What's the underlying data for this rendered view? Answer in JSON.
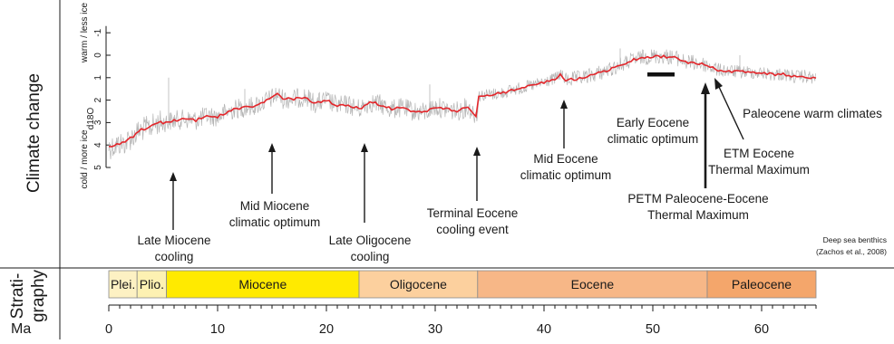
{
  "side_labels": {
    "climate": "Climate change",
    "strat_line1": "Strati-",
    "strat_line2": "graphy",
    "ma": "Ma"
  },
  "source_note": {
    "line1": "Deep sea benthics",
    "line2": "(Zachos et al., 2008)"
  },
  "colors": {
    "raw_series": "#b5b5b5",
    "smooth_series": "#e3262b",
    "axis": "#1a1a1a"
  },
  "chart_data": {
    "type": "line",
    "xlabel": "Ma",
    "ylabel": "d18O",
    "ylabel_top": "warm / less ice",
    "ylabel_bottom": "cold / more ice",
    "x_ticks": [
      0,
      10,
      20,
      30,
      40,
      50,
      60
    ],
    "y_ticks": [
      -1,
      0,
      1,
      2,
      3,
      4,
      5
    ],
    "xlim": [
      0,
      65
    ],
    "ylim": [
      5,
      -1.5
    ],
    "y_inverted": true,
    "series": [
      {
        "style": "smoothed",
        "x": [
          0,
          0.5,
          1,
          1.5,
          2,
          2.5,
          3,
          3.5,
          4,
          4.5,
          5,
          5.5,
          6,
          7,
          8,
          9,
          10,
          11,
          12,
          13,
          14,
          15,
          15.5,
          16,
          17,
          18,
          19,
          20,
          21,
          22,
          23,
          24,
          25,
          26,
          27,
          28,
          29,
          30,
          31,
          32,
          33,
          33.5,
          33.8,
          34,
          35,
          36,
          37,
          38,
          39,
          40,
          41,
          41.5,
          42,
          43,
          44,
          45,
          46,
          47,
          48,
          49,
          50,
          51,
          52,
          53,
          54,
          55,
          56,
          57,
          58,
          59,
          60,
          61,
          62,
          63,
          64,
          65
        ],
        "y": [
          4.1,
          4.05,
          3.95,
          3.9,
          3.7,
          3.5,
          3.3,
          3.25,
          3.15,
          3.0,
          3.0,
          2.95,
          2.9,
          2.85,
          2.9,
          2.7,
          2.75,
          2.5,
          2.35,
          2.3,
          2.15,
          1.9,
          1.75,
          1.95,
          1.95,
          1.85,
          2.15,
          2.0,
          2.25,
          2.2,
          2.4,
          2.1,
          2.2,
          2.4,
          2.35,
          2.5,
          2.55,
          2.3,
          2.4,
          2.5,
          2.3,
          2.55,
          2.7,
          1.8,
          1.75,
          1.7,
          1.55,
          1.45,
          1.35,
          1.2,
          1.05,
          0.85,
          1.1,
          1.05,
          0.95,
          0.8,
          0.65,
          0.45,
          0.25,
          0.1,
          0.05,
          0.05,
          0.1,
          0.3,
          0.35,
          0.45,
          0.65,
          0.7,
          0.75,
          0.75,
          0.8,
          0.85,
          0.85,
          0.95,
          0.95,
          1.05
        ]
      },
      {
        "style": "raw"
      }
    ],
    "annotations": {
      "late_miocene": {
        "line1": "Late Miocene",
        "line2": "cooling",
        "x": 6
      },
      "mid_miocene": {
        "line1": "Mid Miocene",
        "line2": "climatic optimum",
        "x": 15
      },
      "late_oligocene": {
        "line1": "Late Oligocene",
        "line2": "cooling",
        "x": 23.5
      },
      "terminal_eocene": {
        "line1": "Terminal Eocene",
        "line2": "cooling event",
        "x": 33.5
      },
      "mid_eocene": {
        "line1": "Mid Eocene",
        "line2": "climatic optimum",
        "x": 41.5
      },
      "early_eocene": {
        "line1": "Early Eocene",
        "line2": "climatic optimum",
        "x_range": [
          49.5,
          52
        ]
      },
      "petm": {
        "line1": "PETM Paleocene-Eocene",
        "line2": "Thermal Maximum",
        "x": 55
      },
      "etm": {
        "line1": "ETM Eocene",
        "line2": "Thermal Maximum",
        "x": 55.5
      },
      "paleocene_warm": {
        "line1": "Paleocene warm climates"
      }
    },
    "epochs": [
      {
        "label": "Plei.",
        "start": 0,
        "end": 2.6,
        "color": "#fdf1c3"
      },
      {
        "label": "Plio.",
        "start": 2.6,
        "end": 5.3,
        "color": "#fdf1b2"
      },
      {
        "label": "Miocene",
        "start": 5.3,
        "end": 23,
        "color": "#ffea00"
      },
      {
        "label": "Oligocene",
        "start": 23,
        "end": 33.9,
        "color": "#fcd09e"
      },
      {
        "label": "Eocene",
        "start": 33.9,
        "end": 55,
        "color": "#f7b787"
      },
      {
        "label": "Paleocene",
        "start": 55,
        "end": 65,
        "color": "#f4a66b"
      }
    ]
  }
}
